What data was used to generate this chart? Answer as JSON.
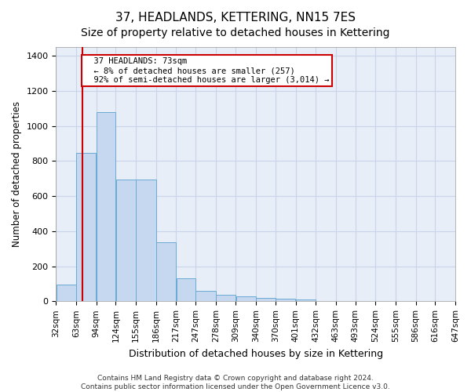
{
  "title": "37, HEADLANDS, KETTERING, NN15 7ES",
  "subtitle": "Size of property relative to detached houses in Kettering",
  "xlabel": "Distribution of detached houses by size in Kettering",
  "ylabel": "Number of detached properties",
  "footer_line1": "Contains HM Land Registry data © Crown copyright and database right 2024.",
  "footer_line2": "Contains public sector information licensed under the Open Government Licence v3.0.",
  "bins": [
    32,
    63,
    94,
    124,
    155,
    186,
    217,
    247,
    278,
    309,
    340,
    370,
    401,
    432,
    463,
    493,
    524,
    555,
    586,
    616,
    647
  ],
  "bar_heights": [
    95,
    845,
    1080,
    695,
    695,
    335,
    130,
    60,
    35,
    30,
    18,
    15,
    12,
    0,
    0,
    0,
    0,
    0,
    0,
    0
  ],
  "bar_color": "#c5d8f0",
  "bar_edge_color": "#6aaad4",
  "vline_x": 73,
  "vline_color": "#cc0000",
  "annotation_text": "  37 HEADLANDS: 73sqm\n  ← 8% of detached houses are smaller (257)\n  92% of semi-detached houses are larger (3,014) →",
  "annotation_box_color": "#ffffff",
  "annotation_box_edge_color": "#cc0000",
  "ylim": [
    0,
    1450
  ],
  "yticks": [
    0,
    200,
    400,
    600,
    800,
    1000,
    1200,
    1400
  ],
  "grid_color": "#c8d4e8",
  "bg_color": "#ffffff",
  "plot_bg_color": "#e8eef8",
  "title_fontsize": 11,
  "subtitle_fontsize": 10,
  "axis_label_fontsize": 8.5,
  "tick_fontsize": 7.5,
  "footer_fontsize": 6.5
}
